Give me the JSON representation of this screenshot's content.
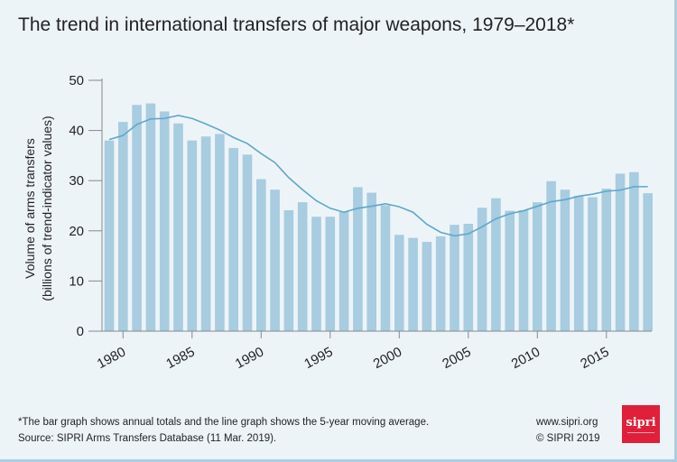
{
  "title": "The trend in international transfers of major weapons, 1979–2018*",
  "footnote": "*The bar graph shows annual totals and the line graph shows the 5-year moving average.",
  "source": "Source: SIPRI Arms Transfers Database (11 Mar. 2019).",
  "website": "www.sipri.org",
  "copyright": "© SIPRI 2019",
  "logo_text": "sipri",
  "colors": {
    "bar": "#a8cce0",
    "line": "#5fa7c9",
    "background": "#edf4f8",
    "logo": "#e0203a"
  },
  "chart_data": {
    "type": "bar",
    "title": "The trend in international transfers of major weapons, 1979–2018*",
    "ylabel": "Volume of arms transfers",
    "ylabel2": "(billions of trend-indicator values)",
    "xlabel": "",
    "ylim": [
      0,
      50
    ],
    "yticks": [
      0,
      10,
      20,
      30,
      40,
      50
    ],
    "xticks": [
      1980,
      1985,
      1990,
      1995,
      2000,
      2005,
      2010,
      2015
    ],
    "grid": false,
    "x": [
      1979,
      1980,
      1981,
      1982,
      1983,
      1984,
      1985,
      1986,
      1987,
      1988,
      1989,
      1990,
      1991,
      1992,
      1993,
      1994,
      1995,
      1996,
      1997,
      1998,
      1999,
      2000,
      2001,
      2002,
      2003,
      2004,
      2005,
      2006,
      2007,
      2008,
      2009,
      2010,
      2011,
      2012,
      2013,
      2014,
      2015,
      2016,
      2017,
      2018
    ],
    "series": [
      {
        "type": "bar",
        "values": [
          38.0,
          41.7,
          45.1,
          45.4,
          43.8,
          41.4,
          38.0,
          38.8,
          39.3,
          36.5,
          35.2,
          30.3,
          28.2,
          24.1,
          25.7,
          22.8,
          22.8,
          23.8,
          28.7,
          27.6,
          25.1,
          19.2,
          18.6,
          17.8,
          18.9,
          21.2,
          21.4,
          24.6,
          26.5,
          24.0,
          24.1,
          25.7,
          29.9,
          28.2,
          27.0,
          26.7,
          28.4,
          31.4,
          31.7,
          27.5
        ]
      },
      {
        "type": "line",
        "values": [
          38.2,
          39.0,
          41.2,
          42.3,
          42.4,
          43.0,
          42.4,
          41.3,
          40.1,
          38.6,
          37.4,
          35.4,
          33.6,
          30.6,
          28.2,
          26.0,
          24.5,
          23.7,
          24.5,
          24.9,
          25.4,
          24.8,
          23.7,
          21.3,
          19.7,
          19.0,
          19.4,
          20.8,
          22.4,
          23.4,
          24.0,
          24.9,
          25.8,
          26.2,
          26.9,
          27.3,
          27.9,
          28.1,
          28.8,
          28.8
        ]
      }
    ]
  }
}
